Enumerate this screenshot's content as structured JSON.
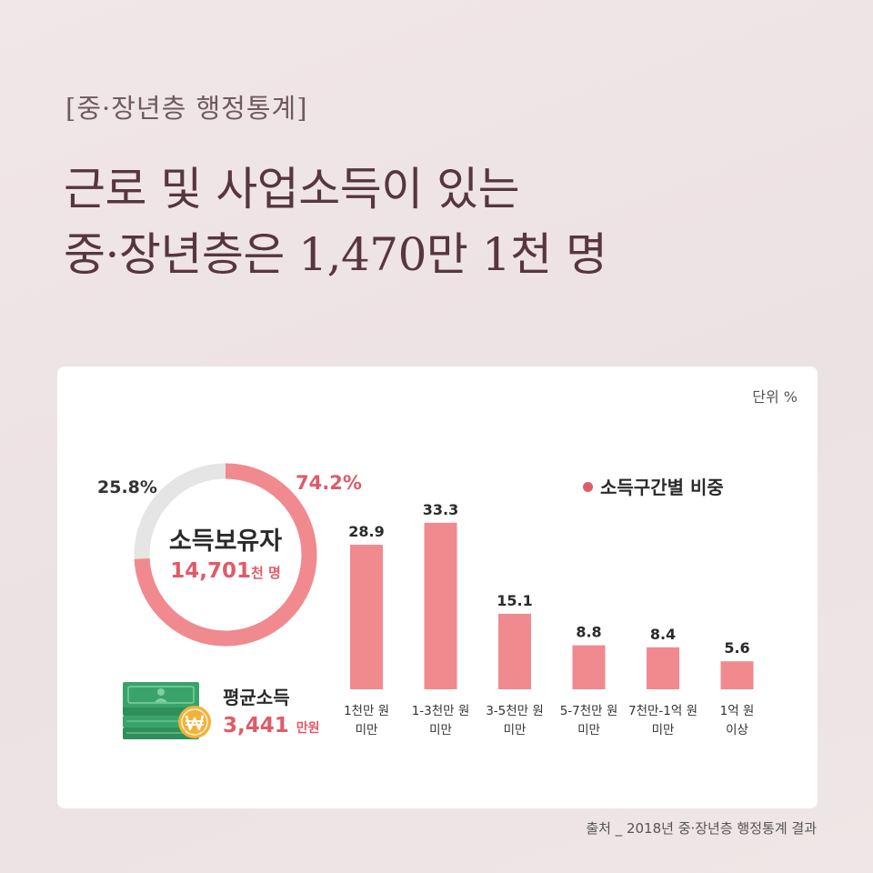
{
  "header": {
    "kicker": "[중·장년층 행정통계]",
    "title_line1": "근로  및 사업소득이 있는",
    "title_line2": "중·장년층은 1,470만 1천 명"
  },
  "card": {
    "unit_label": "단위 %",
    "donut": {
      "title": "소득보유자",
      "value": "14,701",
      "value_unit": "천 명",
      "with_income_pct": 74.2,
      "without_income_pct": 25.8,
      "with_income_label": "74.2%",
      "without_income_label": "25.8%",
      "colors": {
        "with_income": "#f08a8f",
        "without_income": "#e5e5e5"
      }
    },
    "average_income": {
      "title": "평균소득",
      "value": "3,441",
      "value_unit": "만원",
      "icons": [
        "money-stack-icon",
        "won-coin-icon"
      ]
    },
    "legend_label": "소득구간별 비중"
  },
  "chart_data": {
    "type": "bar",
    "categories": [
      [
        "1천만 원",
        "미만"
      ],
      [
        "1-3천만 원",
        "미만"
      ],
      [
        "3-5천만 원",
        "미만"
      ],
      [
        "5-7천만 원",
        "미만"
      ],
      [
        "7천만-1억 원",
        "미만"
      ],
      [
        "1억 원",
        "이상"
      ]
    ],
    "series": [
      {
        "name": "소득구간별 비중",
        "values": [
          28.9,
          33.3,
          15.1,
          8.8,
          8.4,
          5.6
        ],
        "color": "#f08a8f"
      }
    ],
    "ylim": [
      0,
      40
    ],
    "grid": false,
    "legend": "top-right"
  },
  "footer": {
    "source": "출처 _ 2018년 중·장년층 행정통계 결과"
  }
}
